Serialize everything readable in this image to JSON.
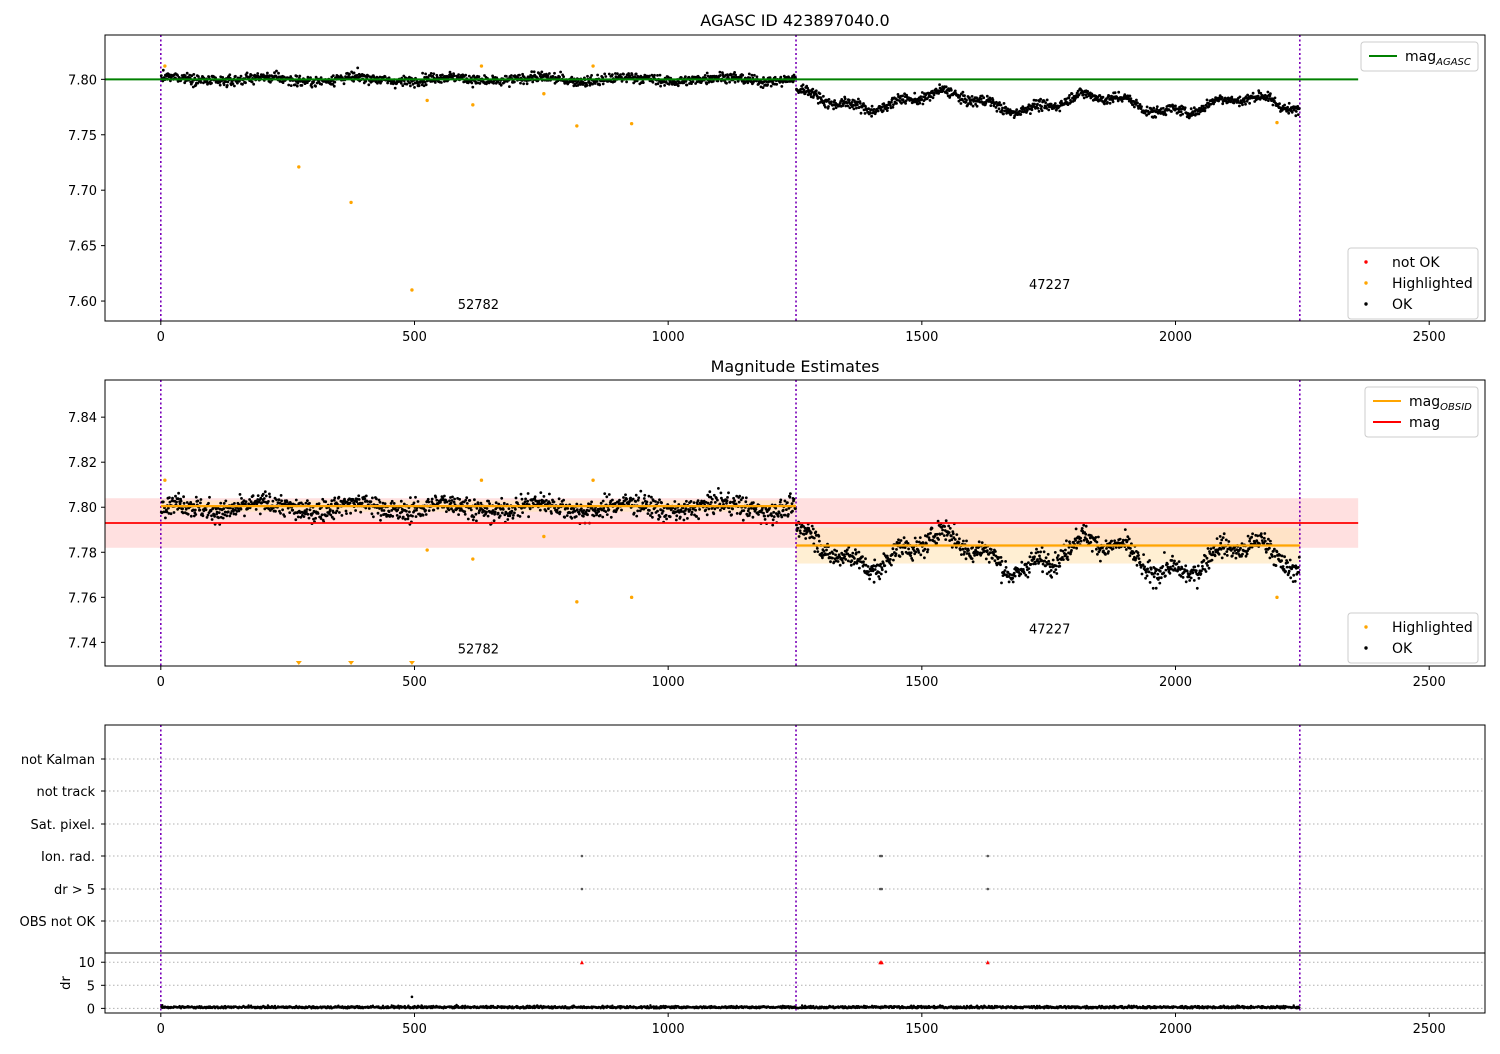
{
  "chart_data": [
    {
      "type": "scatter",
      "title": "AGASC ID 423897040.0",
      "xlim": [
        -110,
        2610
      ],
      "ylim": [
        7.582,
        7.84
      ],
      "xticks": [
        0,
        500,
        1000,
        1500,
        2000,
        2500
      ],
      "yticks": [
        7.6,
        7.65,
        7.7,
        7.75,
        7.8
      ],
      "ytick_labels": [
        "7.60",
        "7.65",
        "7.70",
        "7.75",
        "7.80"
      ],
      "vertical_lines_x": [
        0,
        1252,
        2245
      ],
      "mag_agasc": {
        "value": 7.8,
        "x_range": [
          -110,
          2360
        ],
        "color": "#008000"
      },
      "segments": [
        {
          "x_range": [
            0,
            1252
          ],
          "center": 7.8,
          "spread": 0.004,
          "wave": [
            {
              "amp": 0.002,
              "period": 180
            }
          ]
        },
        {
          "x_range": [
            1252,
            2245
          ],
          "center": 7.782,
          "spread": 0.004,
          "wave": [
            {
              "amp": 0.007,
              "period": 300
            },
            {
              "amp": 0.003,
              "period": 90
            }
          ],
          "trend": -0.006
        }
      ],
      "highlighted_points": [
        {
          "x": 8,
          "y": 7.812
        },
        {
          "x": 272,
          "y": 7.721
        },
        {
          "x": 375,
          "y": 7.689
        },
        {
          "x": 495,
          "y": 7.61
        },
        {
          "x": 525,
          "y": 7.781
        },
        {
          "x": 615,
          "y": 7.777
        },
        {
          "x": 632,
          "y": 7.812
        },
        {
          "x": 755,
          "y": 7.787
        },
        {
          "x": 820,
          "y": 7.758
        },
        {
          "x": 852,
          "y": 7.812
        },
        {
          "x": 928,
          "y": 7.76
        },
        {
          "x": 2200,
          "y": 7.761
        }
      ],
      "obsid_labels": [
        {
          "text": "52782",
          "x": 626,
          "y": 7.593
        },
        {
          "text": "47227",
          "x": 1752,
          "y": 7.611
        }
      ],
      "legend_top": {
        "placement": "top-right",
        "entries": [
          {
            "label": "mag",
            "subscript": "AGASC",
            "color": "#008000"
          }
        ]
      },
      "legend_bottom": {
        "placement": "bottom-right",
        "entries": [
          {
            "label": "not OK",
            "color": "#ff0000"
          },
          {
            "label": "Highlighted",
            "color": "#ffa500"
          },
          {
            "label": "OK",
            "color": "#000000"
          }
        ]
      }
    },
    {
      "type": "scatter",
      "title": "Magnitude Estimates",
      "xlim": [
        -110,
        2610
      ],
      "ylim": [
        7.7295,
        7.8565
      ],
      "xticks": [
        0,
        500,
        1000,
        1500,
        2000,
        2500
      ],
      "yticks": [
        7.74,
        7.76,
        7.78,
        7.8,
        7.82,
        7.84
      ],
      "ytick_labels": [
        "7.74",
        "7.76",
        "7.78",
        "7.80",
        "7.82",
        "7.84"
      ],
      "vertical_lines_x": [
        0,
        1252,
        2245
      ],
      "mag": {
        "value": 7.793,
        "band": [
          7.782,
          7.804
        ],
        "x_range": [
          -110,
          2360
        ],
        "color": "#ff0000"
      },
      "mag_obsid": [
        {
          "value": 7.8005,
          "band": [
            7.798,
            7.803
          ],
          "x_range": [
            0,
            1252
          ]
        },
        {
          "value": 7.783,
          "band": [
            7.775,
            7.791
          ],
          "x_range": [
            1252,
            2245
          ]
        }
      ],
      "highlighted_points": [
        {
          "x": 8,
          "y": 7.812
        },
        {
          "x": 525,
          "y": 7.781
        },
        {
          "x": 615,
          "y": 7.777
        },
        {
          "x": 632,
          "y": 7.812
        },
        {
          "x": 755,
          "y": 7.787
        },
        {
          "x": 820,
          "y": 7.758
        },
        {
          "x": 852,
          "y": 7.812
        },
        {
          "x": 928,
          "y": 7.76
        },
        {
          "x": 2200,
          "y": 7.76
        }
      ],
      "clipped_markers_x": [
        272,
        375,
        495
      ],
      "obsid_labels": [
        {
          "text": "52782",
          "x": 626,
          "y": 7.735
        },
        {
          "text": "47227",
          "x": 1752,
          "y": 7.744
        }
      ],
      "legend_top": {
        "placement": "top-right",
        "entries": [
          {
            "label": "mag",
            "subscript": "OBSID",
            "color": "#ffa500"
          },
          {
            "label": "mag",
            "subscript": "",
            "color": "#ff0000"
          }
        ]
      },
      "legend_bottom": {
        "placement": "bottom-right",
        "entries": [
          {
            "label": "Highlighted",
            "color": "#ffa500"
          },
          {
            "label": "OK",
            "color": "#000000"
          }
        ]
      }
    },
    {
      "type": "scatter",
      "title": "",
      "xlim": [
        -110,
        2610
      ],
      "xticks": [
        0,
        500,
        1000,
        1500,
        2000,
        2500
      ],
      "vertical_lines_x": [
        0,
        1252,
        2245
      ],
      "flag_rows": [
        "not Kalman",
        "not track",
        "Sat. pixel.",
        "Ion. rad.",
        "dr > 5",
        "OBS not OK"
      ],
      "flag_points": [
        {
          "flag": "Ion. rad.",
          "x": [
            830,
            1418,
            1421,
            1630
          ]
        },
        {
          "flag": "dr > 5",
          "x": [
            830,
            1418,
            1421,
            1630
          ]
        }
      ],
      "dr_panel": {
        "ylabel": "dr",
        "ylim": [
          -1,
          12
        ],
        "yticks": [
          0,
          5,
          10
        ],
        "ytick_labels": [
          "0",
          "5",
          "10"
        ],
        "clipped_markers": [
          {
            "x": 830,
            "y": 10
          },
          {
            "x": 1418,
            "y": 10
          },
          {
            "x": 1421,
            "y": 10
          },
          {
            "x": 1630,
            "y": 10
          }
        ],
        "outliers": [
          {
            "x": 495,
            "y": 2.5
          }
        ],
        "baseline": {
          "center": 0.25,
          "spread": 0.25
        }
      }
    }
  ],
  "colors": {
    "ok": "#000000",
    "highlighted": "#ffa500",
    "not_ok": "#ff0000",
    "agasc": "#008000",
    "vline": "#7a00b8"
  }
}
